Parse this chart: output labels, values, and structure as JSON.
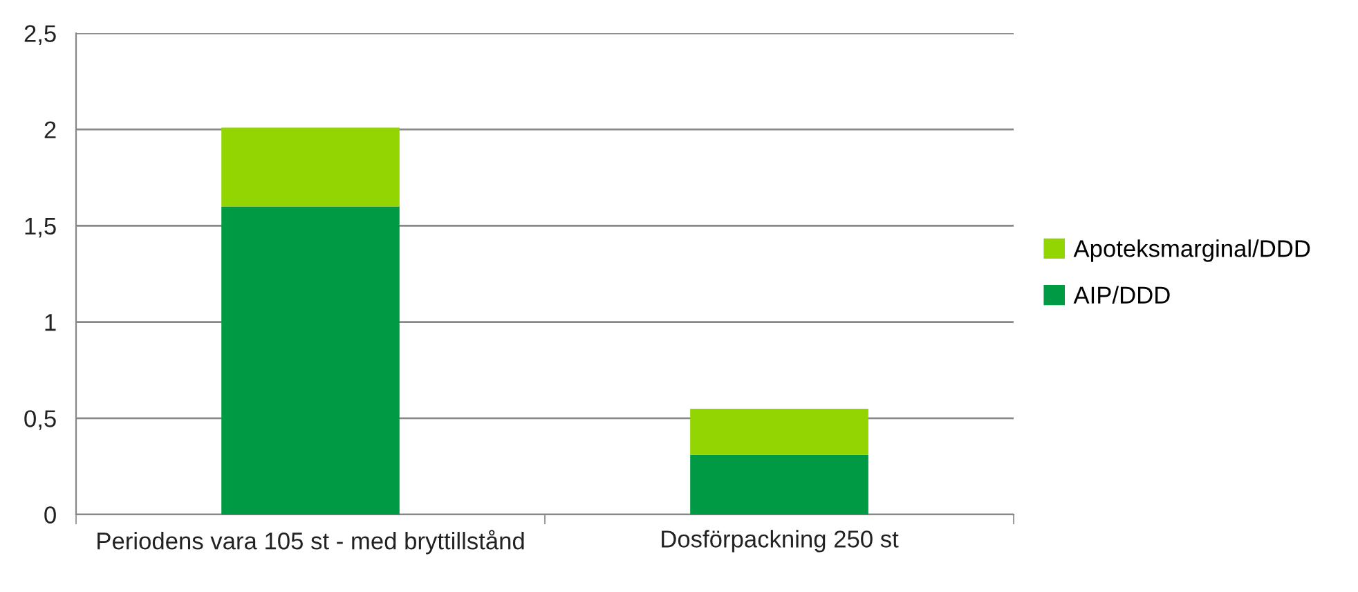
{
  "chart_data": {
    "type": "bar",
    "stacked": true,
    "categories": [
      "Periodens vara 105 st - med bryttillstånd",
      "Dosförpackning 250 st"
    ],
    "series": [
      {
        "name": "AIP/DDD",
        "color": "#009a44",
        "values": [
          1.6,
          0.31
        ]
      },
      {
        "name": "Apoteksmarginal/DDD",
        "color": "#92d500",
        "values": [
          0.41,
          0.24
        ]
      }
    ],
    "ylim": [
      0,
      2.5
    ],
    "yticks": [
      {
        "value": 0,
        "label": "0"
      },
      {
        "value": 0.5,
        "label": "0,5"
      },
      {
        "value": 1,
        "label": "1"
      },
      {
        "value": 1.5,
        "label": "1,5"
      },
      {
        "value": 2,
        "label": "2"
      },
      {
        "value": 2.5,
        "label": "2,5"
      }
    ],
    "grid": "y",
    "legend": "right"
  }
}
